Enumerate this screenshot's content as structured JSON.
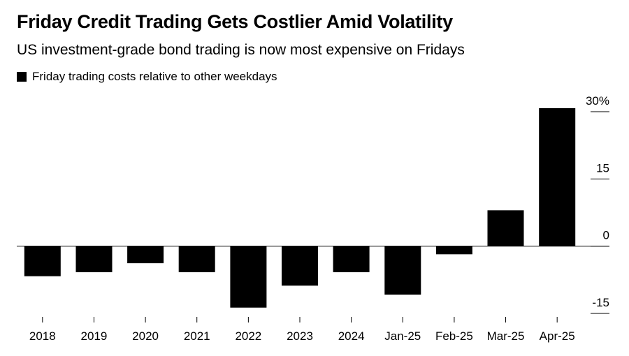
{
  "chart_data": {
    "type": "bar",
    "title": "Friday Credit Trading Gets Costlier Amid Volatility",
    "subtitle": "US investment-grade bond trading is now most expensive on Fridays",
    "legend": [
      {
        "name": "Friday trading costs relative to other weekdays",
        "color": "#000000"
      }
    ],
    "categories": [
      "2018",
      "2019",
      "2020",
      "2021",
      "2022",
      "2023",
      "2024",
      "Jan-25",
      "Feb-25",
      "Mar-25",
      "Apr-25"
    ],
    "values": [
      -6.7,
      -5.8,
      -3.8,
      -5.8,
      -13.7,
      -8.8,
      -5.8,
      -10.8,
      -1.8,
      8.0,
      30.8
    ],
    "ylim": [
      -15,
      30
    ],
    "yticks": [
      30,
      15,
      0,
      -15
    ],
    "ytick_labels": [
      "30%",
      "15",
      "0",
      "-15"
    ],
    "xlabel": "",
    "ylabel": "",
    "bar_color": "#000000",
    "grid": false
  }
}
